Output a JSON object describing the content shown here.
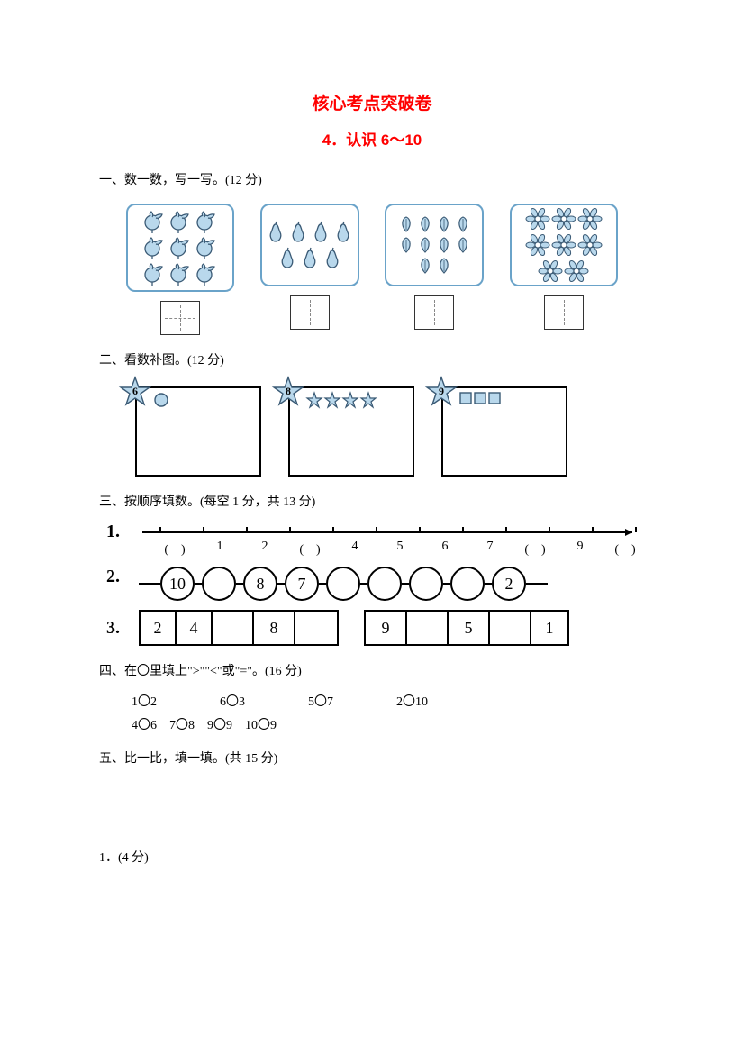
{
  "colors": {
    "red": "#ff0000",
    "boxBorder": "#6aa3c9",
    "fillBlue": "#b9d8ec",
    "strokeDark": "#3a5a75"
  },
  "title": "核心考点突破卷",
  "subtitle": "4．认识 6～10",
  "q1": {
    "heading": "一、数一数，写一写。(12 分)",
    "groups": [
      {
        "icon": "radish",
        "count": 9,
        "cols": 3
      },
      {
        "icon": "pear",
        "count": 7,
        "cols": 4
      },
      {
        "icon": "leaf",
        "count": 10,
        "cols": 5
      },
      {
        "icon": "flower",
        "count": 8,
        "cols": 3
      }
    ]
  },
  "q2": {
    "heading": "二、看数补图。(12 分)",
    "items": [
      {
        "star": "6",
        "shape": "circle",
        "given": 1
      },
      {
        "star": "8",
        "shape": "star",
        "given": 4
      },
      {
        "star": "9",
        "shape": "square",
        "given": 3
      }
    ]
  },
  "q3": {
    "heading": "三、按顺序填数。(每空 1 分，共 13 分)",
    "line1_labels": [
      "(　)",
      "1",
      "2",
      "(　)",
      "4",
      "5",
      "6",
      "7",
      "(　)",
      "9",
      "(　)"
    ],
    "line2_chain": [
      "10",
      "",
      "8",
      "7",
      "",
      "",
      "",
      "",
      "2"
    ],
    "line3_left": {
      "vals": [
        "2",
        "4",
        "",
        "8",
        ""
      ],
      "widths": [
        40,
        40,
        46,
        46,
        46
      ]
    },
    "line3_right": {
      "vals": [
        "9",
        "",
        "5",
        "",
        "1"
      ],
      "widths": [
        46,
        46,
        46,
        46,
        40
      ]
    }
  },
  "q4": {
    "heading": "四、在〇里填上\">\"\"<\"或\"=\"。(16 分)",
    "row1": [
      "1〇2",
      "6〇3",
      "5〇7",
      "2〇10"
    ],
    "row2": [
      "4〇6",
      "7〇8",
      "9〇9",
      "10〇9"
    ]
  },
  "q5": {
    "heading": "五、比一比，填一填。(共 15 分)"
  },
  "q5_1": "1．(4 分)"
}
